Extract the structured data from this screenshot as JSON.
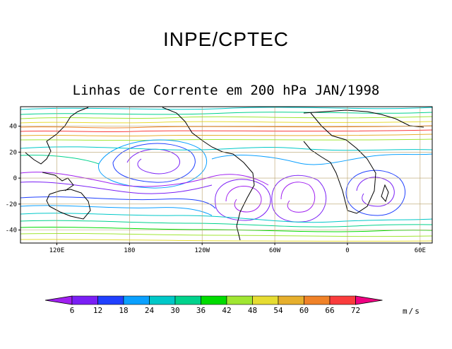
{
  "header": {
    "title": "INPE/CPTEC",
    "subtitle": "Linhas de Corrente em 200 hPa JAN/1998"
  },
  "map": {
    "projection": "cylindrical-equidistant",
    "lon_range": [
      90,
      430
    ],
    "lat_range": [
      -50,
      55
    ],
    "y_ticks": [
      {
        "value": 40,
        "label": "40"
      },
      {
        "value": 20,
        "label": "20"
      },
      {
        "value": 0,
        "label": "0"
      },
      {
        "value": -20,
        "label": "-20"
      },
      {
        "value": -40,
        "label": "-40"
      }
    ],
    "x_ticks": [
      {
        "value": 120,
        "label": "120E"
      },
      {
        "value": 180,
        "label": "180"
      },
      {
        "value": 240,
        "label": "120W"
      },
      {
        "value": 300,
        "label": "60W"
      },
      {
        "value": 360,
        "label": "0"
      },
      {
        "value": 420,
        "label": "60E"
      }
    ],
    "grid": true,
    "grid_color": "#b8a06a"
  },
  "colorbar": {
    "unit": "m/s",
    "labels": [
      "6",
      "12",
      "18",
      "24",
      "30",
      "36",
      "42",
      "48",
      "54",
      "60",
      "66",
      "72"
    ],
    "colors": [
      "#a020f0",
      "#7a1ff5",
      "#2040ff",
      "#0aa0ff",
      "#00c8c8",
      "#00d28c",
      "#00dc00",
      "#a0e632",
      "#e6dc32",
      "#e6af2d",
      "#f08228",
      "#fa3c3c",
      "#f00082"
    ]
  }
}
